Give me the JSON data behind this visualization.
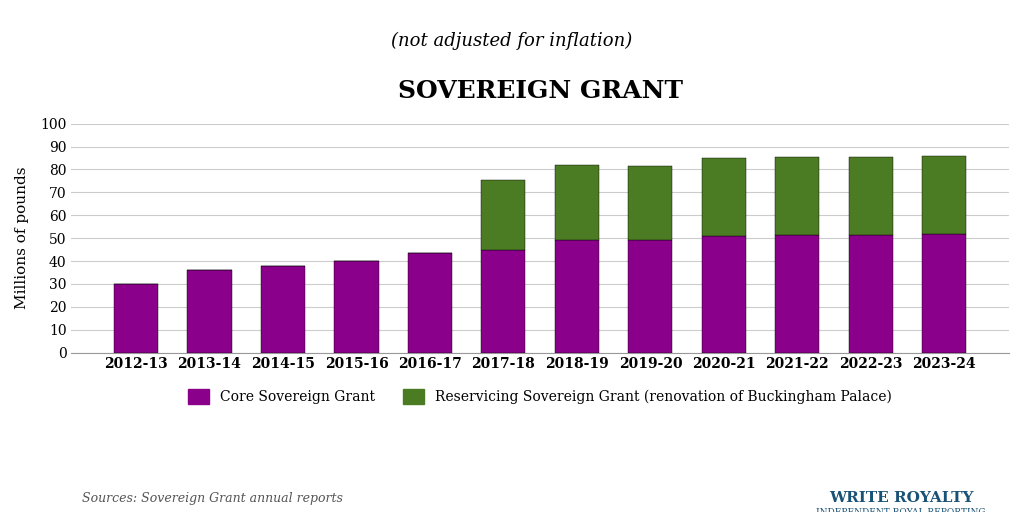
{
  "categories": [
    "2012-13",
    "2013-14",
    "2014-15",
    "2015-16",
    "2016-17",
    "2017-18",
    "2018-19",
    "2019-20",
    "2020-21",
    "2021-22",
    "2022-23",
    "2023-24"
  ],
  "core_grant": [
    30.0,
    36.1,
    37.9,
    40.1,
    43.3,
    45.0,
    49.0,
    49.0,
    51.0,
    51.5,
    51.4,
    51.8
  ],
  "reservicing": [
    0,
    0,
    0,
    0,
    0,
    30.6,
    33.0,
    32.6,
    34.0,
    34.0,
    34.0,
    34.0
  ],
  "core_color": "#8B008B",
  "reservicing_color": "#4B7B23",
  "title": "SOVEREIGN GRANT",
  "subtitle": "(not adjusted for inflation)",
  "ylabel": "Millions of pounds",
  "ylim": [
    0,
    100
  ],
  "yticks": [
    0,
    10,
    20,
    30,
    40,
    50,
    60,
    70,
    80,
    90,
    100
  ],
  "legend_core": "Core Sovereign Grant",
  "legend_reservicing": "Reservicing Sovereign Grant (renovation of Buckingham Palace)",
  "source_text": "Sources: Sovereign Grant annual reports",
  "background_color": "#FFFFFF",
  "grid_color": "#CCCCCC"
}
